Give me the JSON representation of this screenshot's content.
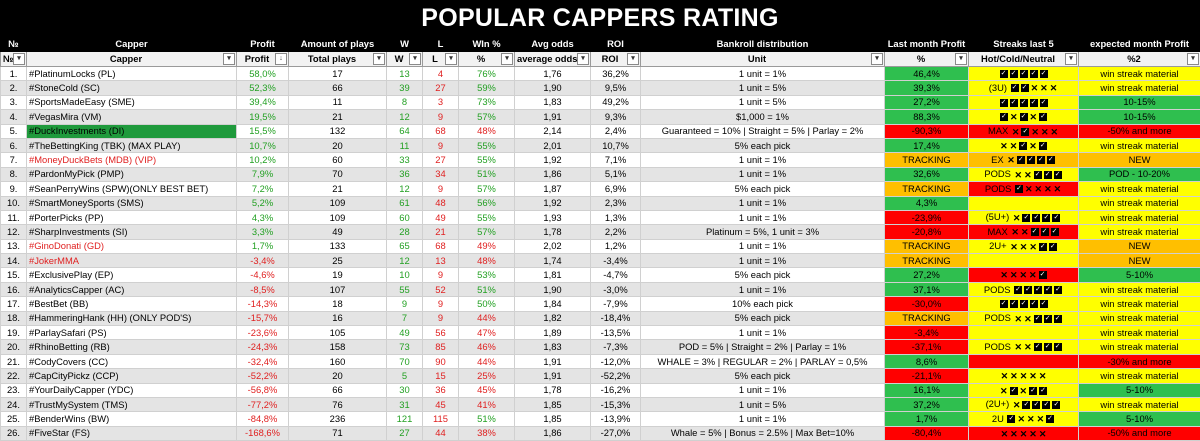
{
  "title": "POPULAR CAPPERS RATING",
  "headers1": [
    "№",
    "Capper",
    "Profit",
    "Amount of plays",
    "W",
    "L",
    "WIn %",
    "Avg odds",
    "ROI",
    "Bankroll distribution",
    "Last month Profit",
    "Streaks last 5",
    "expected month Profit"
  ],
  "headers2": [
    "№",
    "Capper",
    "Profit",
    "Total plays",
    "W",
    "L",
    "%",
    "average odds",
    "ROI",
    "Unit",
    "%",
    "Hot/Cold/Neutral",
    "%2"
  ],
  "colors": {
    "green": "#2fbf4f",
    "red": "#ff0000",
    "orange": "#ffbf00",
    "yellow": "#ffff00",
    "pos_text": "#22a022",
    "neg_text": "#e02020"
  },
  "rows": [
    {
      "n": "1.",
      "name": "#PlatinumLocks (PL)",
      "profit": "58,0%",
      "plays": "17",
      "w": "13",
      "l": "4",
      "pct": "76%",
      "odds": "1,76",
      "roi": "36,2%",
      "unit": "1 unit = 1%",
      "lm": "46,4%",
      "lmc": "g",
      "streak": "CCCCC",
      "sprefix": "",
      "sc": "y",
      "exp": "win streak material",
      "ec": "y"
    },
    {
      "n": "2.",
      "name": "#StoneCold (SC)",
      "profit": "52,3%",
      "plays": "66",
      "w": "39",
      "l": "27",
      "pct": "59%",
      "odds": "1,90",
      "roi": "9,5%",
      "unit": "1 unit = 5%",
      "lm": "39,3%",
      "lmc": "g",
      "streak": "CCXXX",
      "sprefix": "(3U)",
      "sc": "y",
      "exp": "win streak material",
      "ec": "y"
    },
    {
      "n": "3.",
      "name": "#SportsMadeEasy (SME)",
      "profit": "39,4%",
      "plays": "11",
      "w": "8",
      "l": "3",
      "pct": "73%",
      "odds": "1,83",
      "roi": "49,2%",
      "unit": "1 unit = 5%",
      "lm": "27,2%",
      "lmc": "g",
      "streak": "CCCCC",
      "sprefix": "",
      "sc": "y",
      "exp": "10-15%",
      "ec": "g"
    },
    {
      "n": "4.",
      "name": "#VegasMira (VM)",
      "profit": "19,5%",
      "plays": "21",
      "w": "12",
      "l": "9",
      "pct": "57%",
      "odds": "1,91",
      "roi": "9,3%",
      "unit": "$1,000 = 1%",
      "lm": "88,3%",
      "lmc": "g",
      "streak": "CXCXC",
      "sprefix": "",
      "sc": "y",
      "exp": "10-15%",
      "ec": "g"
    },
    {
      "n": "5.",
      "name": "#DuckInvestments (DI)",
      "profit": "15,5%",
      "plays": "132",
      "w": "64",
      "l": "68",
      "pct": "48%",
      "odds": "2,14",
      "roi": "2,4%",
      "unit": "Guaranteed = 10% | Straight = 5% | Parlay = 2%",
      "lm": "-90,3%",
      "lmc": "r",
      "streak": "XCXXX",
      "sprefix": "MAX",
      "sc": "r",
      "exp": "-50% and more",
      "ec": "r"
    },
    {
      "n": "6.",
      "name": "#TheBettingKing (TBK) (MAX PLAY)",
      "profit": "10,7%",
      "plays": "20",
      "w": "11",
      "l": "9",
      "pct": "55%",
      "odds": "2,01",
      "roi": "10,7%",
      "unit": "5% each pick",
      "lm": "17,4%",
      "lmc": "g",
      "streak": "XXCXC",
      "sprefix": "",
      "sc": "y",
      "exp": "win streak material",
      "ec": "y"
    },
    {
      "n": "7.",
      "name": "#MoneyDuckBets (MDB) (VIP)",
      "profit": "10,2%",
      "plays": "60",
      "w": "33",
      "l": "27",
      "pct": "55%",
      "odds": "1,92",
      "roi": "7,1%",
      "unit": "1 unit = 1%",
      "lm": "TRACKING",
      "lmc": "o",
      "streak": "XCCCC",
      "sprefix": "EX",
      "sc": "o",
      "exp": "NEW",
      "ec": "o"
    },
    {
      "n": "8.",
      "name": "#PardonMyPick (PMP)",
      "profit": "7,9%",
      "plays": "70",
      "w": "36",
      "l": "34",
      "pct": "51%",
      "odds": "1,86",
      "roi": "5,1%",
      "unit": "1 unit = 1%",
      "lm": "32,6%",
      "lmc": "g",
      "streak": "XXCCC",
      "sprefix": "PODS",
      "sc": "y",
      "exp": "POD - 10-20%",
      "ec": "g"
    },
    {
      "n": "9.",
      "name": "#SeanPerryWins (SPW)(ONLY BEST BET)",
      "profit": "7,2%",
      "plays": "21",
      "w": "12",
      "l": "9",
      "pct": "57%",
      "odds": "1,87",
      "roi": "6,9%",
      "unit": "5% each pick",
      "lm": "TRACKING",
      "lmc": "o",
      "streak": "CXXXX",
      "sprefix": "PODS",
      "sc": "r",
      "exp": "win streak material",
      "ec": "y"
    },
    {
      "n": "10.",
      "name": "#SmartMoneySports (SMS)",
      "profit": "5,2%",
      "plays": "109",
      "w": "61",
      "l": "48",
      "pct": "56%",
      "odds": "1,92",
      "roi": "2,3%",
      "unit": "1 unit = 1%",
      "lm": "4,3%",
      "lmc": "g",
      "streak": "",
      "sprefix": "",
      "sc": "y",
      "exp": "win streak material",
      "ec": "y"
    },
    {
      "n": "11.",
      "name": "#PorterPicks (PP)",
      "profit": "4,3%",
      "plays": "109",
      "w": "60",
      "l": "49",
      "pct": "55%",
      "odds": "1,93",
      "roi": "1,3%",
      "unit": "1 unit = 1%",
      "lm": "-23,9%",
      "lmc": "r",
      "streak": "XCCCC",
      "sprefix": "(5U+)",
      "sc": "y",
      "exp": "win streak material",
      "ec": "y"
    },
    {
      "n": "12.",
      "name": "#SharpInvestments (SI)",
      "profit": "3,3%",
      "plays": "49",
      "w": "28",
      "l": "21",
      "pct": "57%",
      "odds": "1,78",
      "roi": "2,2%",
      "unit": "Platinum = 5%, 1 unit = 3%",
      "lm": "-20,8%",
      "lmc": "r",
      "streak": "XXCCC",
      "sprefix": "MAX",
      "sc": "r",
      "exp": "win streak material",
      "ec": "y"
    },
    {
      "n": "13.",
      "name": "#GinoDonati (GD)",
      "profit": "1,7%",
      "plays": "133",
      "w": "65",
      "l": "68",
      "pct": "49%",
      "odds": "2,02",
      "roi": "1,2%",
      "unit": "1 unit = 1%",
      "lm": "TRACKING",
      "lmc": "o",
      "streak": "XXXCC",
      "sprefix": "2U+",
      "sc": "y",
      "exp": "NEW",
      "ec": "o"
    },
    {
      "n": "14.",
      "name": "#JokerMMA",
      "profit": "-3,4%",
      "plays": "25",
      "w": "12",
      "l": "13",
      "pct": "48%",
      "odds": "1,74",
      "roi": "-3,4%",
      "unit": "1 unit = 1%",
      "lm": "TRACKING",
      "lmc": "o",
      "streak": "",
      "sprefix": "",
      "sc": "y",
      "exp": "NEW",
      "ec": "o"
    },
    {
      "n": "15.",
      "name": "#ExclusivePlay (EP)",
      "profit": "-4,6%",
      "plays": "19",
      "w": "10",
      "l": "9",
      "pct": "53%",
      "odds": "1,81",
      "roi": "-4,7%",
      "unit": "5% each pick",
      "lm": "27,2%",
      "lmc": "g",
      "streak": "XXXXC",
      "sprefix": "",
      "sc": "r",
      "exp": "5-10%",
      "ec": "g"
    },
    {
      "n": "16.",
      "name": "#AnalyticsCapper (AC)",
      "profit": "-8,5%",
      "plays": "107",
      "w": "55",
      "l": "52",
      "pct": "51%",
      "odds": "1,90",
      "roi": "-3,0%",
      "unit": "1 unit = 1%",
      "lm": "37,1%",
      "lmc": "g",
      "streak": "CCCCC",
      "sprefix": "PODS",
      "sc": "y",
      "exp": "win streak material",
      "ec": "y"
    },
    {
      "n": "17.",
      "name": "#BestBet (BB)",
      "profit": "-14,3%",
      "plays": "18",
      "w": "9",
      "l": "9",
      "pct": "50%",
      "odds": "1,84",
      "roi": "-7,9%",
      "unit": "10% each pick",
      "lm": "-30,0%",
      "lmc": "r",
      "streak": "CCCCC",
      "sprefix": "",
      "sc": "y",
      "exp": "win streak material",
      "ec": "y"
    },
    {
      "n": "18.",
      "name": "#HammeringHank (HH) (ONLY POD'S)",
      "profit": "-15,7%",
      "plays": "16",
      "w": "7",
      "l": "9",
      "pct": "44%",
      "odds": "1,82",
      "roi": "-18,4%",
      "unit": "5% each pick",
      "lm": "TRACKING",
      "lmc": "o",
      "streak": "XXCCC",
      "sprefix": "PODS",
      "sc": "y",
      "exp": "win streak material",
      "ec": "y"
    },
    {
      "n": "19.",
      "name": "#ParlaySafari (PS)",
      "profit": "-23,6%",
      "plays": "105",
      "w": "49",
      "l": "56",
      "pct": "47%",
      "odds": "1,89",
      "roi": "-13,5%",
      "unit": "1 unit = 1%",
      "lm": "-3,4%",
      "lmc": "r",
      "streak": "",
      "sprefix": "",
      "sc": "y",
      "exp": "win streak material",
      "ec": "y"
    },
    {
      "n": "20.",
      "name": "#RhinoBetting (RB)",
      "profit": "-24,3%",
      "plays": "158",
      "w": "73",
      "l": "85",
      "pct": "46%",
      "odds": "1,83",
      "roi": "-7,3%",
      "unit": "POD = 5% | Straight = 2% | Parlay = 1%",
      "lm": "-37,1%",
      "lmc": "r",
      "streak": "XXCCC",
      "sprefix": "PODS",
      "sc": "y",
      "exp": "win streak material",
      "ec": "y"
    },
    {
      "n": "21.",
      "name": "#CodyCovers (CC)",
      "profit": "-32,4%",
      "plays": "160",
      "w": "70",
      "l": "90",
      "pct": "44%",
      "odds": "1,91",
      "roi": "-12,0%",
      "unit": "WHALE = 3% | REGULAR = 2% | PARLAY = 0,5%",
      "lm": "8,6%",
      "lmc": "g",
      "streak": "",
      "sprefix": "",
      "sc": "r",
      "exp": "-30% and more",
      "ec": "r"
    },
    {
      "n": "22.",
      "name": "#CapCityPickz (CCP)",
      "profit": "-52,2%",
      "plays": "20",
      "w": "5",
      "l": "15",
      "pct": "25%",
      "odds": "1,91",
      "roi": "-52,2%",
      "unit": "5% each pick",
      "lm": "-21,1%",
      "lmc": "r",
      "streak": "XXXXX",
      "sprefix": "",
      "sc": "y",
      "exp": "win streak material",
      "ec": "y"
    },
    {
      "n": "23.",
      "name": "#YourDailyCapper (YDC)",
      "profit": "-56,8%",
      "plays": "66",
      "w": "30",
      "l": "36",
      "pct": "45%",
      "odds": "1,78",
      "roi": "-16,2%",
      "unit": "1 unit = 1%",
      "lm": "16,1%",
      "lmc": "g",
      "streak": "XCXCC",
      "sprefix": "",
      "sc": "y",
      "exp": "5-10%",
      "ec": "g"
    },
    {
      "n": "24.",
      "name": "#TrustMySystem (TMS)",
      "profit": "-77,2%",
      "plays": "76",
      "w": "31",
      "l": "45",
      "pct": "41%",
      "odds": "1,85",
      "roi": "-15,3%",
      "unit": "1 unit = 5%",
      "lm": "37,2%",
      "lmc": "g",
      "streak": "XCCCC",
      "sprefix": "(2U+)",
      "sc": "y",
      "exp": "win streak material",
      "ec": "y"
    },
    {
      "n": "25.",
      "name": "#BenderWins (BW)",
      "profit": "-84,8%",
      "plays": "236",
      "w": "121",
      "l": "115",
      "pct": "51%",
      "odds": "1,85",
      "roi": "-13,9%",
      "unit": "1 unit = 1%",
      "lm": "1,7%",
      "lmc": "g",
      "streak": "CXXXC",
      "sprefix": "2U",
      "sc": "y",
      "exp": "5-10%",
      "ec": "g"
    },
    {
      "n": "26.",
      "name": "#FiveStar (FS)",
      "profit": "-168,6%",
      "plays": "71",
      "w": "27",
      "l": "44",
      "pct": "38%",
      "odds": "1,86",
      "roi": "-27,0%",
      "unit": "Whale = 5% | Bonus = 2.5% | Max Bet=10%",
      "lm": "-80,4%",
      "lmc": "r",
      "streak": "XXXXX",
      "sprefix": "",
      "sc": "r",
      "exp": "-50% and more",
      "ec": "r"
    }
  ]
}
